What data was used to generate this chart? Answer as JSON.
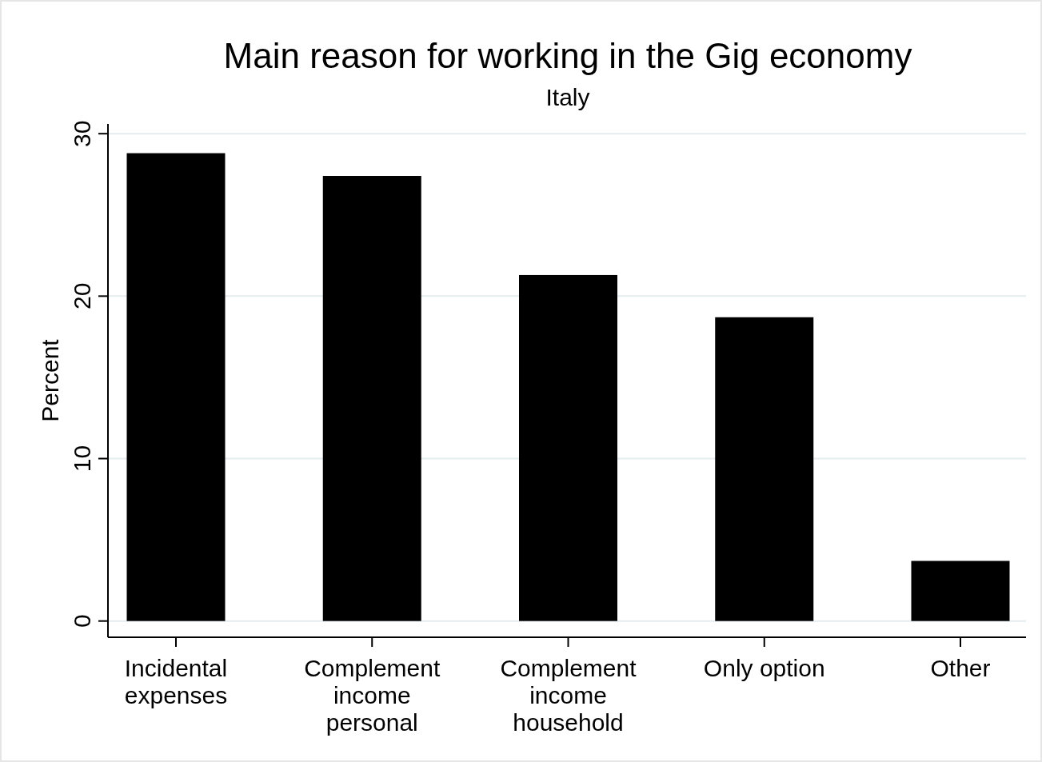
{
  "chart_data": {
    "type": "bar",
    "title": "Main reason for working in the Gig economy",
    "subtitle": "Italy",
    "ylabel": "Percent",
    "categories": [
      "Incidental expenses",
      "Complement income personal",
      "Complement income household",
      "Only option",
      "Other"
    ],
    "values": [
      28.8,
      27.4,
      21.3,
      18.7,
      3.7
    ],
    "color": "#000000",
    "ylim": [
      -1,
      30.6
    ],
    "yticks": [
      0,
      10,
      20,
      30
    ],
    "grid": "y"
  }
}
